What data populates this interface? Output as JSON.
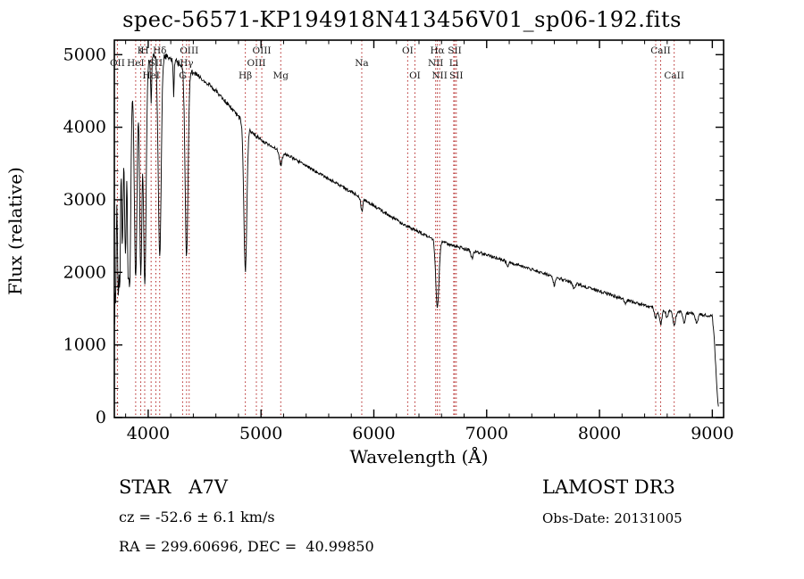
{
  "chart_data": {
    "type": "line",
    "title": "spec-56571-KP194918N413456V01_sp06-192.fits",
    "xlabel": "Wavelength (Å)",
    "ylabel": "Flux (relative)",
    "xlim": [
      3700,
      9100
    ],
    "ylim": [
      0,
      5200
    ],
    "x_ticks": [
      4000,
      5000,
      6000,
      7000,
      8000,
      9000
    ],
    "x_minor_step": 200,
    "y_ticks": [
      0,
      1000,
      2000,
      3000,
      4000,
      5000
    ],
    "y_minor_step": 200,
    "axis_color": "#000000",
    "line_color": "#000000",
    "marker_color": "#b22222",
    "label_color": "#1a1a1a",
    "continuum": [
      [
        3700,
        900
      ],
      [
        3706,
        2600
      ],
      [
        3712,
        3900
      ],
      [
        3720,
        4350
      ],
      [
        3740,
        4520
      ],
      [
        3780,
        4600
      ],
      [
        3850,
        4720
      ],
      [
        3920,
        4820
      ],
      [
        4000,
        4920
      ],
      [
        4060,
        4990
      ],
      [
        4140,
        4990
      ],
      [
        4220,
        4930
      ],
      [
        4300,
        4860
      ],
      [
        4380,
        4780
      ],
      [
        4460,
        4690
      ],
      [
        4540,
        4590
      ],
      [
        4620,
        4470
      ],
      [
        4700,
        4330
      ],
      [
        4780,
        4180
      ],
      [
        4861,
        4030
      ],
      [
        4940,
        3900
      ],
      [
        5020,
        3800
      ],
      [
        5120,
        3710
      ],
      [
        5220,
        3630
      ],
      [
        5320,
        3540
      ],
      [
        5420,
        3450
      ],
      [
        5520,
        3360
      ],
      [
        5620,
        3270
      ],
      [
        5720,
        3180
      ],
      [
        5820,
        3090
      ],
      [
        5920,
        3000
      ],
      [
        6020,
        2900
      ],
      [
        6120,
        2800
      ],
      [
        6220,
        2700
      ],
      [
        6320,
        2620
      ],
      [
        6420,
        2540
      ],
      [
        6520,
        2470
      ],
      [
        6620,
        2410
      ],
      [
        6720,
        2360
      ],
      [
        6820,
        2320
      ],
      [
        6920,
        2280
      ],
      [
        7020,
        2230
      ],
      [
        7120,
        2180
      ],
      [
        7220,
        2130
      ],
      [
        7320,
        2080
      ],
      [
        7420,
        2030
      ],
      [
        7520,
        1980
      ],
      [
        7620,
        1930
      ],
      [
        7720,
        1880
      ],
      [
        7820,
        1830
      ],
      [
        7920,
        1780
      ],
      [
        8020,
        1730
      ],
      [
        8120,
        1680
      ],
      [
        8220,
        1630
      ],
      [
        8320,
        1580
      ],
      [
        8420,
        1540
      ],
      [
        8520,
        1505
      ],
      [
        8620,
        1475
      ],
      [
        8720,
        1455
      ],
      [
        8820,
        1435
      ],
      [
        8920,
        1415
      ],
      [
        9000,
        1395
      ],
      [
        9015,
        1150
      ],
      [
        9030,
        700
      ],
      [
        9045,
        300
      ],
      [
        9055,
        130
      ]
    ],
    "absorption_lines": [
      {
        "center": 3712,
        "depth": 0.55,
        "sigma": 6
      },
      {
        "center": 3734,
        "depth": 0.6,
        "sigma": 8
      },
      {
        "center": 3750,
        "depth": 0.5,
        "sigma": 6
      },
      {
        "center": 3771,
        "depth": 0.48,
        "sigma": 7
      },
      {
        "center": 3798,
        "depth": 0.52,
        "sigma": 9
      },
      {
        "center": 3820,
        "depth": 0.3,
        "sigma": 5
      },
      {
        "center": 3835,
        "depth": 0.62,
        "sigma": 11
      },
      {
        "center": 3889,
        "depth": 0.6,
        "sigma": 12
      },
      {
        "center": 3934,
        "depth": 0.58,
        "sigma": 10
      },
      {
        "center": 3970,
        "depth": 0.62,
        "sigma": 12
      },
      {
        "center": 4026,
        "depth": 0.12,
        "sigma": 5
      },
      {
        "center": 4102,
        "depth": 0.56,
        "sigma": 13
      },
      {
        "center": 4226,
        "depth": 0.1,
        "sigma": 4
      },
      {
        "center": 4340,
        "depth": 0.54,
        "sigma": 13
      },
      {
        "center": 4861,
        "depth": 0.5,
        "sigma": 13
      },
      {
        "center": 5175,
        "depth": 0.05,
        "sigma": 12
      },
      {
        "center": 5893,
        "depth": 0.06,
        "sigma": 9
      },
      {
        "center": 6563,
        "depth": 0.38,
        "sigma": 14
      },
      {
        "center": 6870,
        "depth": 0.05,
        "sigma": 8
      },
      {
        "center": 7186,
        "depth": 0.03,
        "sigma": 8
      },
      {
        "center": 7600,
        "depth": 0.06,
        "sigma": 10
      },
      {
        "center": 7774,
        "depth": 0.04,
        "sigma": 10
      },
      {
        "center": 8227,
        "depth": 0.03,
        "sigma": 8
      },
      {
        "center": 8498,
        "depth": 0.1,
        "sigma": 10
      },
      {
        "center": 8542,
        "depth": 0.14,
        "sigma": 12
      },
      {
        "center": 8598,
        "depth": 0.08,
        "sigma": 9
      },
      {
        "center": 8662,
        "depth": 0.13,
        "sigma": 12
      },
      {
        "center": 8750,
        "depth": 0.09,
        "sigma": 11
      },
      {
        "center": 8862,
        "depth": 0.08,
        "sigma": 11
      }
    ],
    "noise": {
      "seed": 20131005,
      "step": 4,
      "bands": [
        [
          3800,
          70
        ],
        [
          4400,
          42
        ],
        [
          5000,
          30
        ],
        [
          9200,
          22
        ]
      ]
    },
    "spectral_lines": [
      {
        "wavelength": 3727,
        "label": "OII",
        "row": 1
      },
      {
        "wavelength": 3889,
        "label": "HeI",
        "row": 1
      },
      {
        "wavelength": 3934,
        "label": "K",
        "row": 0
      },
      {
        "wavelength": 3969,
        "label": "H",
        "row": 0
      },
      {
        "wavelength": 4026,
        "label": "HeI",
        "row": 2
      },
      {
        "wavelength": 4068,
        "label": "SII",
        "row": 1
      },
      {
        "wavelength": 4102,
        "label": "Hδ",
        "row": 0
      },
      {
        "wavelength": 4305,
        "label": "G",
        "row": 2
      },
      {
        "wavelength": 4340,
        "label": "Hγ",
        "row": 1
      },
      {
        "wavelength": 4363,
        "label": "OIII",
        "row": 0
      },
      {
        "wavelength": 4861,
        "label": "Hβ",
        "row": 2
      },
      {
        "wavelength": 4959,
        "label": "OIII",
        "row": 1
      },
      {
        "wavelength": 5007,
        "label": "OIII",
        "row": 0
      },
      {
        "wavelength": 5175,
        "label": "Mg",
        "row": 2
      },
      {
        "wavelength": 5893,
        "label": "Na",
        "row": 1
      },
      {
        "wavelength": 6300,
        "label": "OI",
        "row": 0
      },
      {
        "wavelength": 6364,
        "label": "OI",
        "row": 2
      },
      {
        "wavelength": 6548,
        "label": "NII",
        "row": 1
      },
      {
        "wavelength": 6563,
        "label": "Hα",
        "row": 0
      },
      {
        "wavelength": 6583,
        "label": "NII",
        "row": 2
      },
      {
        "wavelength": 6708,
        "label": "Li",
        "row": 1
      },
      {
        "wavelength": 6717,
        "label": "SII",
        "row": 0
      },
      {
        "wavelength": 6731,
        "label": "SII",
        "row": 2
      },
      {
        "wavelength": 8498,
        "label": "",
        "row": 0
      },
      {
        "wavelength": 8542,
        "label": "CaII",
        "row": 0
      },
      {
        "wavelength": 8662,
        "label": "CaII",
        "row": 2
      }
    ]
  },
  "annotations": {
    "class_label": "STAR   A7V",
    "survey": "LAMOST DR3",
    "cz": "cz = -52.6 ± 6.1 km/s",
    "obs_date": "Obs-Date: 20131005",
    "coords": "RA = 299.60696, DEC =  40.99850"
  }
}
